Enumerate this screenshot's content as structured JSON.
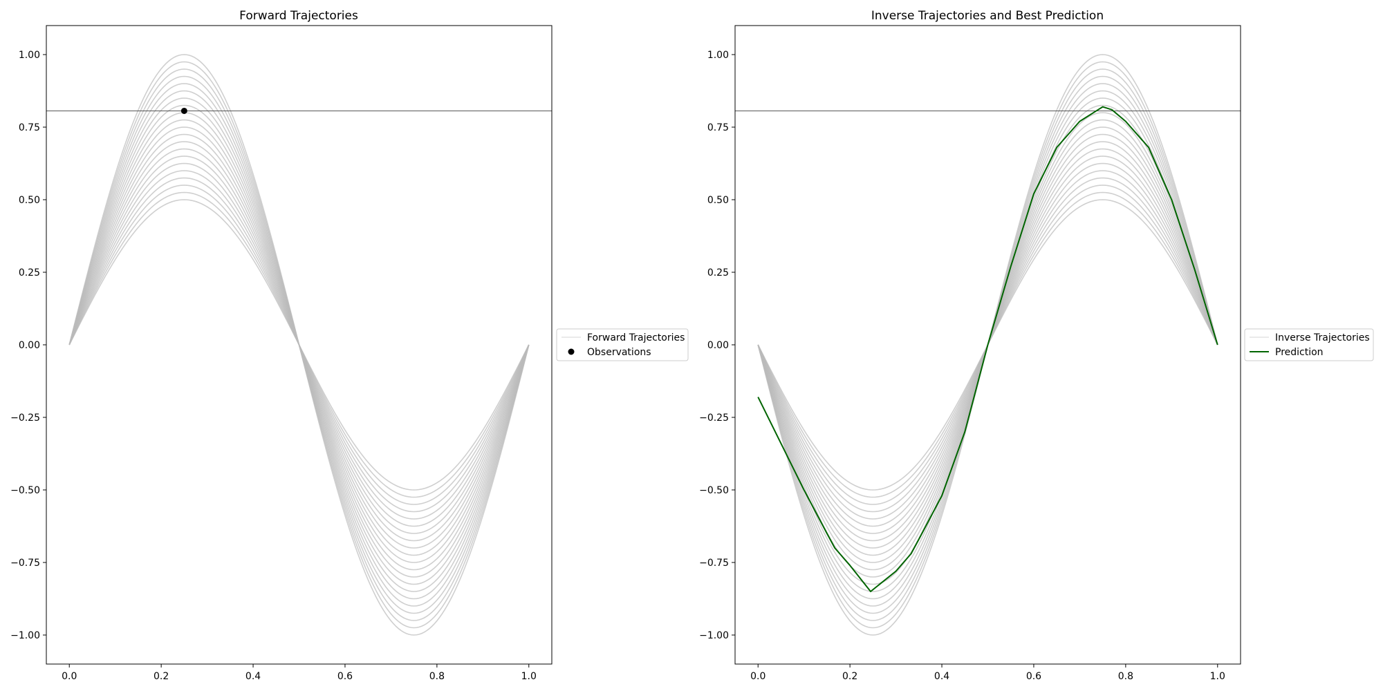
{
  "chart_data": [
    {
      "type": "line",
      "title": "Forward Trajectories",
      "xlabel": "",
      "ylabel": "",
      "xlim": [
        -0.05,
        1.05
      ],
      "ylim": [
        -1.1,
        1.1
      ],
      "x_ticks": [
        0.0,
        0.2,
        0.4,
        0.6,
        0.8,
        1.0
      ],
      "x_tick_labels": [
        "0.0",
        "0.2",
        "0.4",
        "0.6",
        "0.8",
        "1.0"
      ],
      "y_ticks": [
        -1.0,
        -0.75,
        -0.5,
        -0.25,
        0.0,
        0.25,
        0.5,
        0.75,
        1.0
      ],
      "y_tick_labels": [
        "−1.00",
        "−0.75",
        "−0.50",
        "−0.25",
        "0.00",
        "0.25",
        "0.50",
        "0.75",
        "1.00"
      ],
      "grid": false,
      "legend_position": "right, outside",
      "legend": [
        "Forward Trajectories",
        "Observations"
      ],
      "trajectories": {
        "name": "Forward Trajectories",
        "function": "A * sin(2 * pi * x)",
        "amplitudes": [
          0.5,
          0.525,
          0.55,
          0.575,
          0.6,
          0.625,
          0.65,
          0.675,
          0.7,
          0.725,
          0.75,
          0.775,
          0.8,
          0.825,
          0.85,
          0.875,
          0.9,
          0.925,
          0.95,
          0.975,
          1.0
        ],
        "color": "#bbbbbb"
      },
      "observations": {
        "name": "Observations",
        "x": [
          0.25
        ],
        "y": [
          0.806
        ],
        "color": "#000000"
      },
      "hline": {
        "y": 0.806,
        "color": "#555555"
      }
    },
    {
      "type": "line",
      "title": "Inverse Trajectories and Best Prediction",
      "xlabel": "",
      "ylabel": "",
      "xlim": [
        -0.05,
        1.05
      ],
      "ylim": [
        -1.1,
        1.1
      ],
      "x_ticks": [
        0.0,
        0.2,
        0.4,
        0.6,
        0.8,
        1.0
      ],
      "x_tick_labels": [
        "0.0",
        "0.2",
        "0.4",
        "0.6",
        "0.8",
        "1.0"
      ],
      "y_ticks": [
        -1.0,
        -0.75,
        -0.5,
        -0.25,
        0.0,
        0.25,
        0.5,
        0.75,
        1.0
      ],
      "y_tick_labels": [
        "−1.00",
        "−0.75",
        "−0.50",
        "−0.25",
        "0.00",
        "0.25",
        "0.50",
        "0.75",
        "1.00"
      ],
      "grid": false,
      "legend_position": "right, outside",
      "legend": [
        "Inverse Trajectories",
        "Prediction"
      ],
      "trajectories": {
        "name": "Inverse Trajectories",
        "function": "-A * sin(2 * pi * x)",
        "amplitudes": [
          0.5,
          0.525,
          0.55,
          0.575,
          0.6,
          0.625,
          0.65,
          0.675,
          0.7,
          0.725,
          0.75,
          0.775,
          0.8,
          0.825,
          0.85,
          0.875,
          0.9,
          0.925,
          0.95,
          0.975,
          1.0
        ],
        "color": "#bbbbbb"
      },
      "prediction": {
        "name": "Prediction",
        "color": "#006400",
        "x": [
          0.0,
          0.05,
          0.1,
          0.15,
          0.167,
          0.2,
          0.245,
          0.3,
          0.333,
          0.35,
          0.4,
          0.45,
          0.5,
          0.55,
          0.6,
          0.65,
          0.7,
          0.74,
          0.75,
          0.77,
          0.8,
          0.85,
          0.9,
          0.95,
          1.0
        ],
        "y": [
          -0.18,
          -0.34,
          -0.5,
          -0.65,
          -0.7,
          -0.76,
          -0.85,
          -0.78,
          -0.72,
          -0.67,
          -0.52,
          -0.3,
          0.0,
          0.27,
          0.52,
          0.68,
          0.77,
          0.81,
          0.82,
          0.81,
          0.77,
          0.68,
          0.5,
          0.26,
          0.0
        ]
      },
      "hline": {
        "y": 0.806,
        "color": "#555555"
      }
    }
  ]
}
